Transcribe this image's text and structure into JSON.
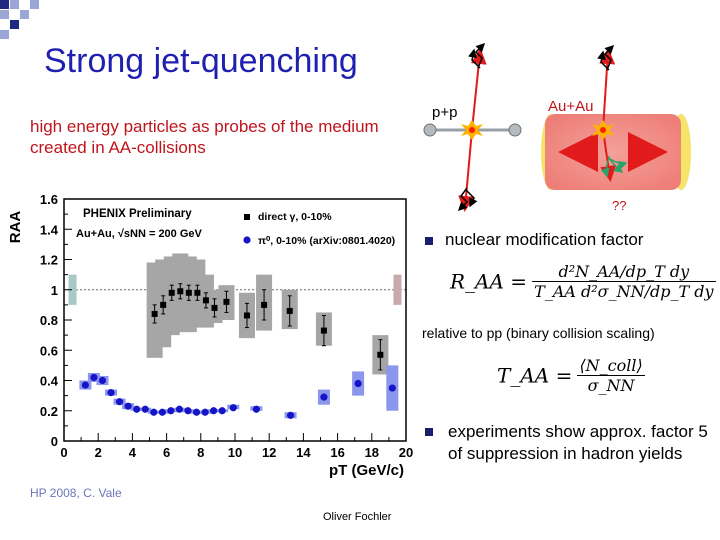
{
  "slide": {
    "title": "Strong jet-quenching",
    "subtitle": "high energy particles as probes of the medium created in AA-collisions",
    "bullet1": "nuclear modification factor",
    "relation_note": "relative to pp (binary collision scaling)",
    "bullet2": "experiments show approx. factor 5 of suppression in hadron yields",
    "credit": "HP 2008, C. Vale",
    "author": "Oliver Fochler"
  },
  "formulas": {
    "raa_lhs": "R_AA =",
    "raa_num": "d²N_AA/dp_T dy",
    "raa_den": "T_AA d²σ_NN/dp_T dy",
    "taa_lhs": "T_AA =",
    "taa_num": "⟨N_coll⟩",
    "taa_den": "σ_NN"
  },
  "diagram": {
    "pp_label": "p+p",
    "auau_label": "Au+Au",
    "unknown_label": "??",
    "colors": {
      "arrow": "#e11b1b",
      "medium": "#f08080",
      "proton": "#9aa0a4",
      "soft_particles": "#2aa36a"
    }
  },
  "colors": {
    "title": "#1f1fb0",
    "subtitle": "#c0141c",
    "bullet": "#1a1f6b",
    "credit": "#6b76b8"
  },
  "chart_data": {
    "type": "scatter",
    "title": "PHENIX Preliminary",
    "subtitle": "Au+Au, √sNN = 200 GeV",
    "xlabel": "pT (GeV/c)",
    "ylabel": "RAA",
    "xlim": [
      0,
      20
    ],
    "ylim": [
      0,
      1.6
    ],
    "xticks": [
      0,
      2,
      4,
      6,
      8,
      10,
      12,
      14,
      16,
      18,
      20
    ],
    "yticks": [
      0,
      0.2,
      0.4,
      0.6,
      0.8,
      1,
      1.2,
      1.4,
      1.6
    ],
    "reference_line": 1,
    "legend_position": "top-right",
    "normalization_boxes": [
      {
        "x": 0.5,
        "low": 0.9,
        "high": 1.1,
        "color": "#a9c9c6"
      },
      {
        "x": 19.5,
        "low": 0.9,
        "high": 1.1,
        "color": "#c9aaaa"
      }
    ],
    "series": [
      {
        "name": "direct γ, 0-10%",
        "marker": "square",
        "color": "#000000",
        "sys_color": "#a6a6a6",
        "points": [
          {
            "x": 5.3,
            "y": 0.84,
            "err": 0.06,
            "sys_low": 0.55,
            "sys_high": 1.18
          },
          {
            "x": 5.8,
            "y": 0.9,
            "err": 0.06,
            "sys_low": 0.62,
            "sys_high": 1.2
          },
          {
            "x": 6.3,
            "y": 0.98,
            "err": 0.05,
            "sys_low": 0.7,
            "sys_high": 1.22
          },
          {
            "x": 6.8,
            "y": 0.99,
            "err": 0.05,
            "sys_low": 0.72,
            "sys_high": 1.24
          },
          {
            "x": 7.3,
            "y": 0.98,
            "err": 0.05,
            "sys_low": 0.72,
            "sys_high": 1.22
          },
          {
            "x": 7.8,
            "y": 0.98,
            "err": 0.05,
            "sys_low": 0.75,
            "sys_high": 1.2
          },
          {
            "x": 8.3,
            "y": 0.93,
            "err": 0.05,
            "sys_low": 0.75,
            "sys_high": 1.1
          },
          {
            "x": 8.8,
            "y": 0.88,
            "err": 0.06,
            "sys_low": 0.78,
            "sys_high": 1.0
          },
          {
            "x": 9.5,
            "y": 0.92,
            "err": 0.07,
            "sys_low": 0.8,
            "sys_high": 1.03
          },
          {
            "x": 10.7,
            "y": 0.83,
            "err": 0.08,
            "sys_low": 0.68,
            "sys_high": 0.98
          },
          {
            "x": 11.7,
            "y": 0.9,
            "err": 0.1,
            "sys_low": 0.73,
            "sys_high": 1.1
          },
          {
            "x": 13.2,
            "y": 0.86,
            "err": 0.1,
            "sys_low": 0.74,
            "sys_high": 1.0
          },
          {
            "x": 15.2,
            "y": 0.73,
            "err": 0.1,
            "sys_low": 0.63,
            "sys_high": 0.85
          },
          {
            "x": 18.5,
            "y": 0.57,
            "err": 0.1,
            "sys_low": 0.44,
            "sys_high": 0.7
          }
        ]
      },
      {
        "name": "π⁰, 0-10% (arXiv:0801.4020)",
        "marker": "circle",
        "color": "#1515c8",
        "sys_color": "#8c96ec",
        "points": [
          {
            "x": 1.25,
            "y": 0.37,
            "sys_low": 0.34,
            "sys_high": 0.4
          },
          {
            "x": 1.75,
            "y": 0.42,
            "sys_low": 0.39,
            "sys_high": 0.45
          },
          {
            "x": 2.25,
            "y": 0.4,
            "sys_low": 0.37,
            "sys_high": 0.43
          },
          {
            "x": 2.75,
            "y": 0.32,
            "sys_low": 0.3,
            "sys_high": 0.34
          },
          {
            "x": 3.25,
            "y": 0.26,
            "sys_low": 0.24,
            "sys_high": 0.28
          },
          {
            "x": 3.75,
            "y": 0.23,
            "sys_low": 0.21,
            "sys_high": 0.25
          },
          {
            "x": 4.25,
            "y": 0.21,
            "sys_low": 0.2,
            "sys_high": 0.22
          },
          {
            "x": 4.75,
            "y": 0.21,
            "sys_low": 0.2,
            "sys_high": 0.22
          },
          {
            "x": 5.25,
            "y": 0.19,
            "sys_low": 0.18,
            "sys_high": 0.2
          },
          {
            "x": 5.75,
            "y": 0.19,
            "sys_low": 0.18,
            "sys_high": 0.2
          },
          {
            "x": 6.25,
            "y": 0.2,
            "sys_low": 0.19,
            "sys_high": 0.21
          },
          {
            "x": 6.75,
            "y": 0.21,
            "sys_low": 0.2,
            "sys_high": 0.22
          },
          {
            "x": 7.25,
            "y": 0.2,
            "sys_low": 0.19,
            "sys_high": 0.21
          },
          {
            "x": 7.75,
            "y": 0.19,
            "sys_low": 0.18,
            "sys_high": 0.2
          },
          {
            "x": 8.25,
            "y": 0.19,
            "sys_low": 0.18,
            "sys_high": 0.2
          },
          {
            "x": 8.75,
            "y": 0.2,
            "sys_low": 0.19,
            "sys_high": 0.21
          },
          {
            "x": 9.25,
            "y": 0.2,
            "sys_low": 0.19,
            "sys_high": 0.21
          },
          {
            "x": 9.9,
            "y": 0.22,
            "sys_low": 0.21,
            "sys_high": 0.24
          },
          {
            "x": 11.25,
            "y": 0.21,
            "sys_low": 0.2,
            "sys_high": 0.23
          },
          {
            "x": 13.25,
            "y": 0.17,
            "sys_low": 0.15,
            "sys_high": 0.19
          },
          {
            "x": 15.2,
            "y": 0.29,
            "sys_low": 0.24,
            "sys_high": 0.34
          },
          {
            "x": 17.2,
            "y": 0.38,
            "sys_low": 0.3,
            "sys_high": 0.46
          },
          {
            "x": 19.2,
            "y": 0.35,
            "sys_low": 0.2,
            "sys_high": 0.5
          }
        ]
      }
    ]
  }
}
